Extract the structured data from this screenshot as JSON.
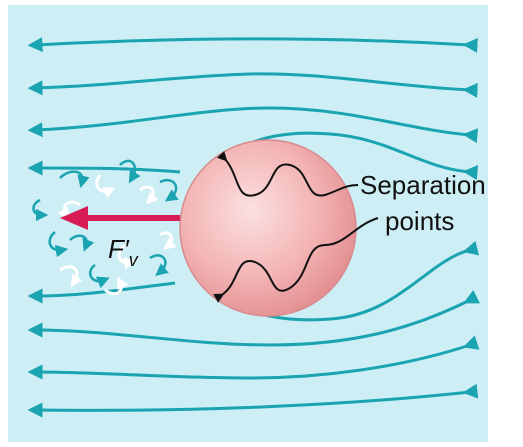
{
  "labels": {
    "separation": [
      "Separation",
      "points"
    ],
    "force": {
      "symbol": "F′",
      "subscript": "v"
    }
  }
}
